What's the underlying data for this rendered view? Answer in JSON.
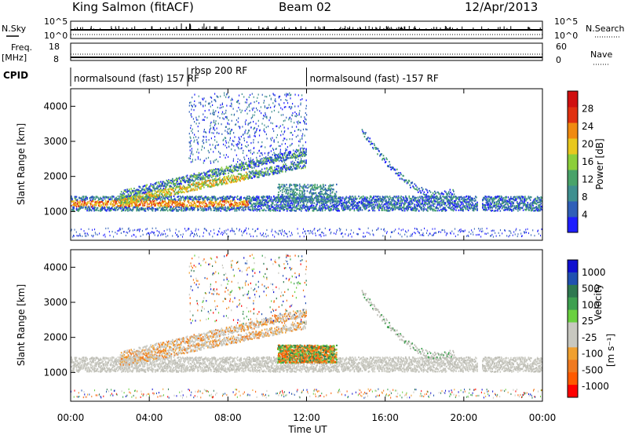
{
  "header": {
    "station": "King Salmon (fitACF)",
    "beam": "Beam 02",
    "date": "12/Apr/2013"
  },
  "sky_panel": {
    "left_label": "N.Sky",
    "left_ticks": [
      "10^5",
      "10^0"
    ],
    "right_label": "N.Search",
    "right_ticks": [
      "10^5",
      "10^0"
    ]
  },
  "freq_panel": {
    "left_label_1": "Freq.",
    "left_label_2": "[MHz]",
    "left_ticks": [
      "18",
      "8"
    ],
    "right_label": "Nave",
    "right_ticks": [
      "60",
      "0"
    ]
  },
  "cpid": {
    "label": "CPID",
    "segments": [
      {
        "name": "normalsound (fast) 157 RF",
        "start_hour": 0.0,
        "end_hour": 5.95
      },
      {
        "name": "rbsp 200 RF",
        "start_hour": 5.95,
        "end_hour": 12.0
      },
      {
        "name": "normalsound (fast) -157 RF",
        "start_hour": 12.0,
        "end_hour": 24.0
      }
    ]
  },
  "power_panel": {
    "ylabel": "Slant Range [km]",
    "yticks": [
      "1000",
      "2000",
      "3000",
      "4000"
    ],
    "colorbar_label": "Power [dB]",
    "colorbar_ticks": [
      "4",
      "8",
      "12",
      "16",
      "20",
      "24",
      "28"
    ]
  },
  "velocity_panel": {
    "ylabel": "Slant Range [km]",
    "yticks": [
      "1000",
      "2000",
      "3000",
      "4000"
    ],
    "colorbar_label": "Velocity",
    "colorbar_unit": "[m s⁻¹]",
    "colorbar_ticks": [
      "1000",
      "500",
      "100",
      "25",
      "-25",
      "-100",
      "-500",
      "-1000"
    ]
  },
  "time_axis": {
    "xlabel": "Time UT",
    "ticks": [
      "00:00",
      "04:00",
      "08:00",
      "12:00",
      "16:00",
      "20:00",
      "00:00"
    ]
  },
  "chart_data": [
    {
      "type": "heatmap",
      "title": "Power",
      "xlabel": "Time UT",
      "ylabel": "Slant Range [km]",
      "xlim": [
        0,
        24
      ],
      "ylim": [
        180,
        4500
      ],
      "colorbar": {
        "label": "Power [dB]",
        "range": [
          0,
          30
        ],
        "colors": [
          "#1e1eff",
          "#2f5fb8",
          "#3f8f8f",
          "#49a36a",
          "#8ccf3a",
          "#e8c81e",
          "#f08a10",
          "#e03010",
          "#d01010"
        ]
      },
      "regions": [
        {
          "name": "main ionospheric band",
          "hour_start": 0.0,
          "hour_end": 24.0,
          "range_km": [
            1050,
            1450
          ],
          "power_db": [
            6,
            26
          ]
        },
        {
          "name": "rising band",
          "hour_start": 3.0,
          "hour_end": 12.0,
          "range_km": [
            1400,
            2600
          ],
          "power_db": [
            6,
            22
          ]
        },
        {
          "name": "upper scatter",
          "hour_start": 6.0,
          "hour_end": 12.0,
          "range_km": [
            2500,
            4400
          ],
          "power_db": [
            3,
            10
          ]
        },
        {
          "name": "arc structure",
          "hour_start": 15.0,
          "hour_end": 19.0,
          "range_km": [
            1300,
            3400
          ],
          "power_db": [
            4,
            12
          ]
        }
      ]
    },
    {
      "type": "heatmap",
      "title": "Velocity",
      "xlabel": "Time UT",
      "ylabel": "Slant Range [km]",
      "xlim": [
        0,
        24
      ],
      "ylim": [
        180,
        4500
      ],
      "colorbar": {
        "label": "Velocity [m s⁻¹]",
        "range": [
          -1000,
          1000
        ],
        "colors": [
          "#ff0000",
          "#ff5a00",
          "#f07a20",
          "#f0a030",
          "#c8c8c0",
          "#c8c8c0",
          "#6ad040",
          "#3ea050",
          "#2e7850",
          "#2050b0",
          "#1010d0"
        ]
      },
      "regions": [
        {
          "name": "ground scatter",
          "hour_start": 0.0,
          "hour_end": 24.0,
          "range_km": [
            1050,
            1450
          ],
          "velocity": [
            -25,
            25
          ]
        },
        {
          "name": "mixed irregularities",
          "hour_start": 10.5,
          "hour_end": 13.5,
          "range_km": [
            1300,
            1800
          ],
          "velocity": [
            -500,
            500
          ]
        }
      ]
    }
  ]
}
